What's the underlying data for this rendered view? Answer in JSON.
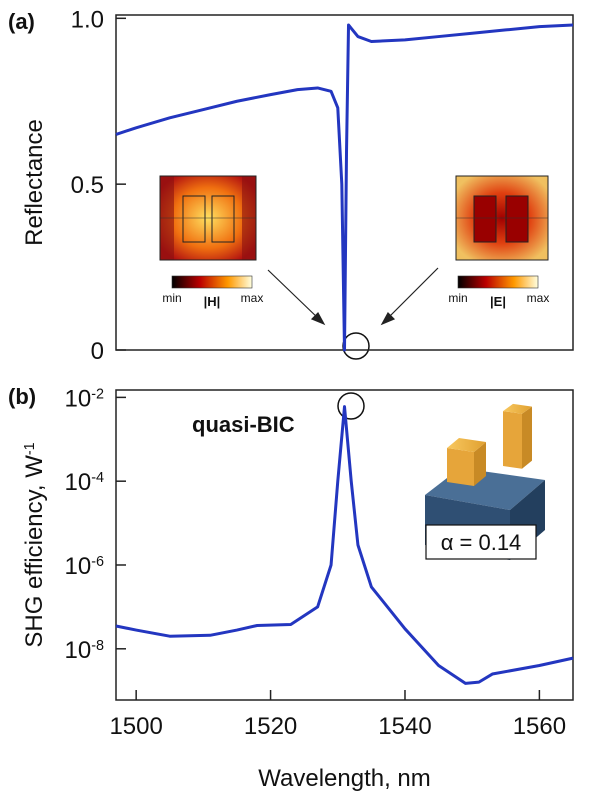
{
  "chart_data": [
    {
      "type": "line",
      "panel_label": "(a)",
      "ylabel": "Reflectance",
      "color": "#2336c0",
      "x": [
        1497,
        1500,
        1505,
        1510,
        1515,
        1520,
        1524,
        1527,
        1529,
        1530,
        1530.6,
        1531,
        1531.3,
        1531.6,
        1532,
        1533,
        1535,
        1540,
        1545,
        1550,
        1555,
        1560,
        1565
      ],
      "values": [
        0.65,
        0.67,
        0.7,
        0.725,
        0.75,
        0.77,
        0.785,
        0.79,
        0.78,
        0.73,
        0.5,
        0.0,
        0.6,
        0.98,
        0.97,
        0.945,
        0.93,
        0.935,
        0.945,
        0.955,
        0.965,
        0.975,
        0.98
      ],
      "xlim": [
        1497,
        1565
      ],
      "ylim": [
        0,
        1.01
      ],
      "yticks": [
        0,
        0.5,
        {
          "value": 1,
          "label": "1.0"
        }
      ],
      "annotations": {
        "h_min": "min",
        "h_max": "max",
        "h_field": "|H|",
        "e_min": "min",
        "e_max": "max",
        "e_field": "|E|"
      }
    },
    {
      "type": "line",
      "panel_label": "(b)",
      "ylabel": "SHG efficiency, W^-1",
      "xlabel": "Wavelength, nm",
      "color": "#2336c0",
      "log_y": true,
      "x": [
        1497,
        1500,
        1505,
        1511,
        1515,
        1518,
        1523,
        1527,
        1529,
        1530,
        1531,
        1532,
        1533,
        1535,
        1540,
        1545,
        1549,
        1551,
        1553,
        1560,
        1565
      ],
      "values": [
        3.5e-08,
        2.8e-08,
        2e-08,
        2.1e-08,
        2.8e-08,
        3.6e-08,
        3.8e-08,
        1e-07,
        1e-06,
        0.0001,
        0.006,
        0.0001,
        3e-06,
        3e-07,
        3e-08,
        4e-09,
        1.5e-09,
        1.6e-09,
        2.5e-09,
        4e-09,
        6e-09
      ],
      "xlim": [
        1497,
        1565
      ],
      "ylim": [
        6e-10,
        0.015
      ],
      "xticks": [
        1500,
        1520,
        1540,
        1560
      ],
      "yticks": [
        {
          "value": 0.01,
          "label": "10^-2"
        },
        {
          "value": 0.0001,
          "label": "10^-4"
        },
        {
          "value": 1e-06,
          "label": "10^-6"
        },
        {
          "value": 1e-08,
          "label": "10^-8"
        }
      ],
      "annotations": {
        "peak": "quasi-BIC",
        "alpha": "α = 0.14"
      }
    }
  ]
}
